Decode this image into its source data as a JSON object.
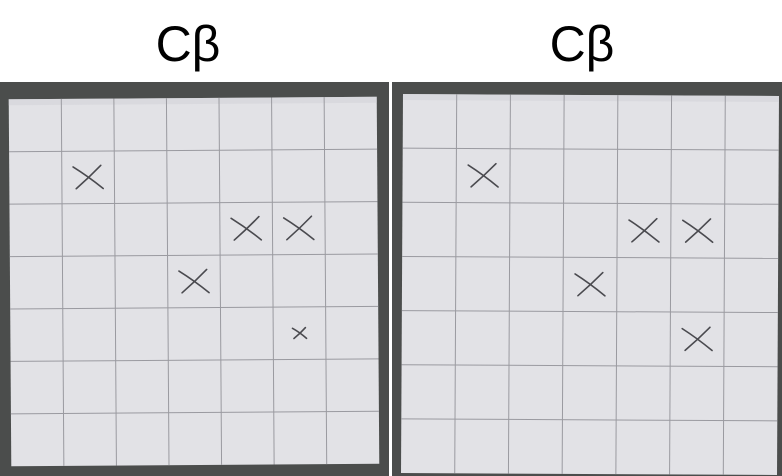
{
  "panels": [
    {
      "label": "Cβ",
      "marks": [
        [
          1,
          1
        ],
        [
          4,
          2
        ],
        [
          5,
          2
        ],
        [
          3,
          3
        ],
        [
          5,
          4
        ]
      ]
    },
    {
      "label": "Cβ",
      "marks": [
        [
          1,
          1
        ],
        [
          4,
          2
        ],
        [
          5,
          2
        ],
        [
          3,
          3
        ],
        [
          5,
          4
        ]
      ]
    }
  ],
  "grid": {
    "rows": 7,
    "cols": 7
  },
  "colors": {
    "background": "#4b4d4c",
    "paper": "#e2e2e6",
    "grid_line": "#9a9aa0",
    "pencil": "#4a4a4f"
  }
}
